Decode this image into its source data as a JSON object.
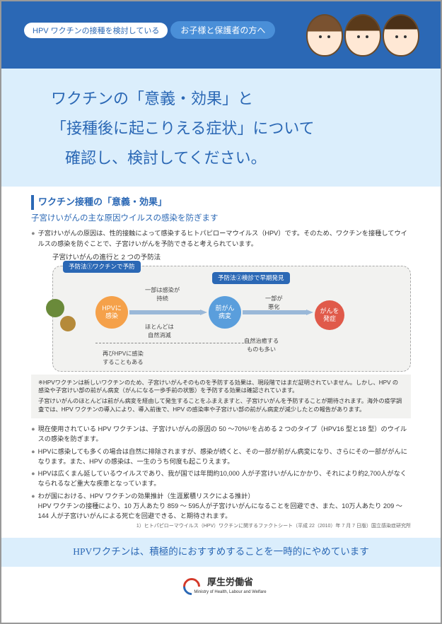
{
  "header": {
    "pill_white": "HPV ワクチンの接種を検討している",
    "pill_blue": "お子様と保護者の方へ"
  },
  "hero": {
    "line1": "ワクチンの「意義・効果」と",
    "line2": "「接種後に起こりえる症状」について",
    "line3": "確認し、検討してください。"
  },
  "section": {
    "title": "ワクチン接種の「意義・効果」",
    "subtitle": "子宮けいがんの主な原因ウイルスの感染を防ぎます",
    "intro": "子宮けいがんの原因は、性的接触によって感染するヒトパピローマウイルス（HPV）です。そのため、ワクチンを接種してウイルスの感染を防ぐことで、子宮けいがんを予防できると考えられています。"
  },
  "diagram": {
    "title": "子宮けいがんの進行と 2 つの予防法",
    "tag1": "予防法①ワクチンで予防",
    "tag2": "予防法②検診で早期発見",
    "node_infect": "HPVに\n感染",
    "node_pre": "前がん\n病変",
    "node_cancer": "がんを\n発症",
    "lbl_persist": "一部は感染が\n持続",
    "lbl_worsen": "一部が\n悪化",
    "lbl_clear": "ほとんどは\n自然消滅",
    "lbl_cure": "自然治癒する\nものも多い",
    "lbl_reinfect": "再びHPVに感染\nすることもある"
  },
  "note": {
    "l1": "※HPVワクチンは新しいワクチンのため、子宮けいがんそのものを予防する効果は、現段階ではまだ証明されていません。しかし、HPV の感染や子宮けい部の前がん病変（がんになる一歩手前の状態）を予防する効果は確認されています。",
    "l2": "子宮けいがんのほとんどは前がん病変を経由して発生することをふまえますと、子宮けいがんを予防することが期待されます。海外の疫学調査では、HPV ワクチンの導入により、導入前後で、HPV の感染率や子宮けい部の前がん病変が減少したとの報告があります。"
  },
  "bullets": {
    "b1": "現在使用されている HPV ワクチンは、子宮けいがんの原因の 50 ～70%¹⁾を占める 2 つのタイプ（HPV16 型と18 型）のウイルスの感染を防ぎます。",
    "b2": "HPVに感染しても多くの場合は自然に排除されますが、感染が続くと、その一部が前がん病変になり、さらにその一部ががんになります。また、HPV の感染は、一生のうち何度も起こりえます。",
    "b3": "HPVは広くまん延しているウイルスであり、我が国では年間約10,000 人が子宮けいがんにかかり、それにより約2,700人がなくなられるなど重大な疾患となっています。",
    "b4a": "わが国における、HPV ワクチンの効果推計（生涯累積リスクによる推計）",
    "b4b": "HPV ワクチンの接種により、10 万人あたり 859 ～ 595人が子宮けいがんになることを回避でき、また、10万人あたり 209 ～ 144 人が子宮けいがんによる死亡を回避できる、と期待されます。"
  },
  "ref": "1）ヒトパピローマウイルス（HPV）ワクチンに関するファクトシート（平成 22（2010）年 7 月 7 日版）国立感染症研究所",
  "bottom": "HPVワクチンは、積極的におすすめすることを一時的にやめています",
  "ministry": {
    "name": "厚生労働省",
    "sub": "Ministry of Health, Labour and Welfare"
  },
  "colors": {
    "brand_blue": "#2b68b5",
    "light_blue": "#dbeefc",
    "orange": "#f5a14a",
    "node_blue": "#5a9edc",
    "red": "#e05a4a"
  }
}
